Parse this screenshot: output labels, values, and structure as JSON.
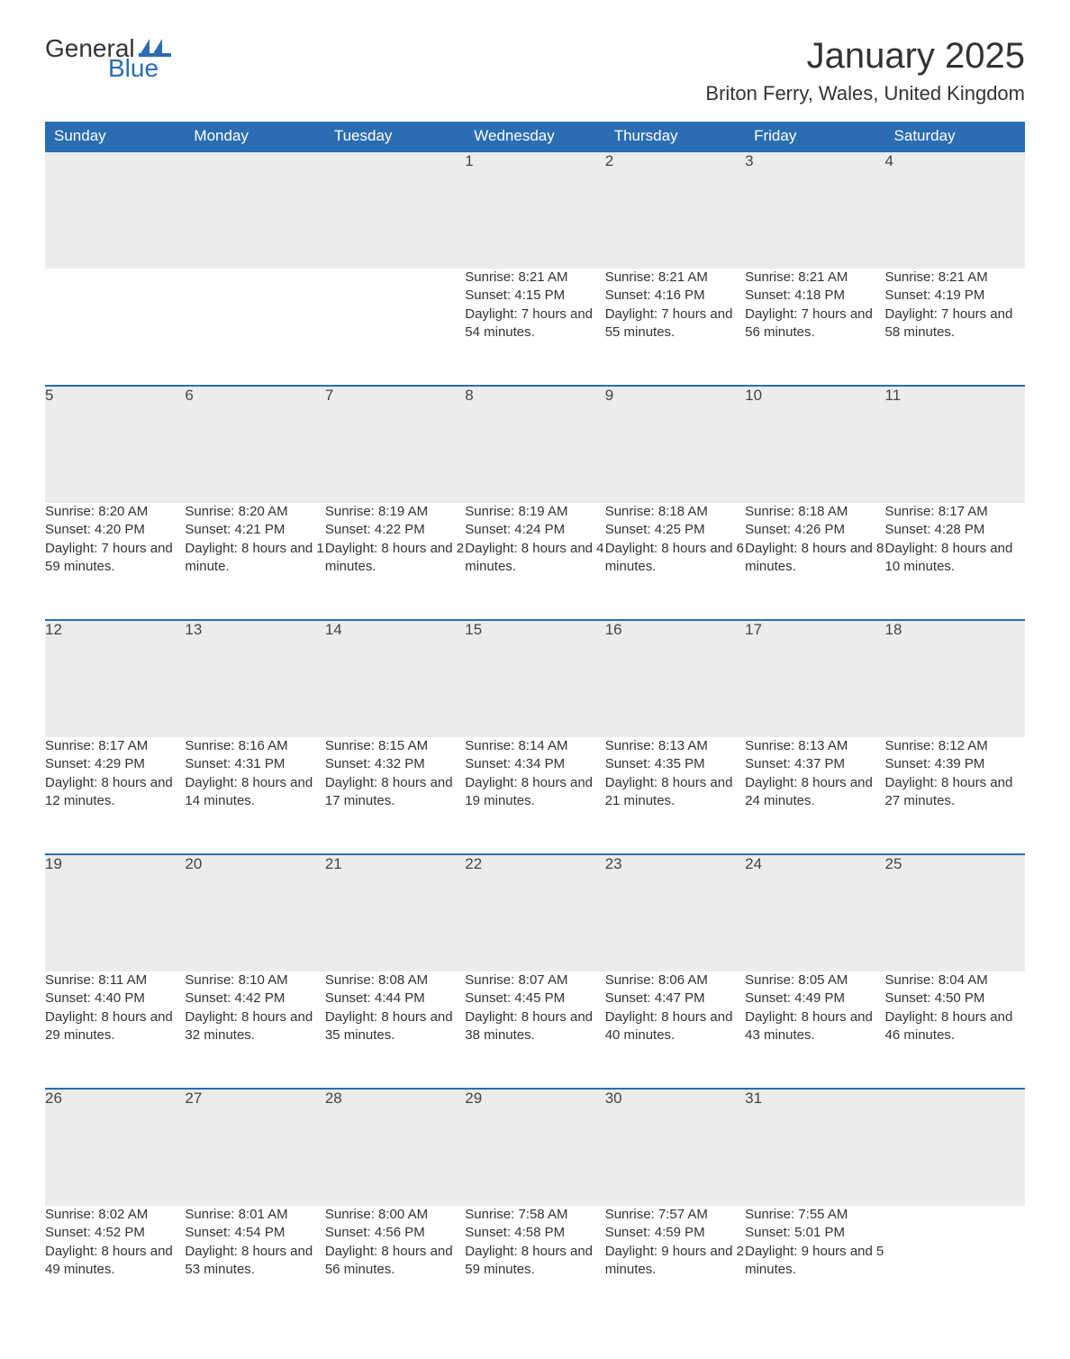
{
  "logo": {
    "part1": "General",
    "part2": "Blue",
    "text_color": "#333333",
    "blue_color": "#2a6db3"
  },
  "header": {
    "title": "January 2025",
    "location": "Briton Ferry, Wales, United Kingdom"
  },
  "colors": {
    "header_bg": "#2a6db3",
    "header_text": "#ffffff",
    "daynum_bg": "#ececec",
    "row_border": "#2a6db3",
    "body_text": "#333333",
    "page_bg": "#ffffff"
  },
  "fonts": {
    "title_size_pt": 30,
    "location_size_pt": 17,
    "th_size_pt": 13,
    "cell_size_pt": 11
  },
  "calendar": {
    "type": "table",
    "columns": [
      "Sunday",
      "Monday",
      "Tuesday",
      "Wednesday",
      "Thursday",
      "Friday",
      "Saturday"
    ],
    "weeks": [
      [
        null,
        null,
        null,
        {
          "num": "1",
          "sunrise": "8:21 AM",
          "sunset": "4:15 PM",
          "daylight": "7 hours and 54 minutes."
        },
        {
          "num": "2",
          "sunrise": "8:21 AM",
          "sunset": "4:16 PM",
          "daylight": "7 hours and 55 minutes."
        },
        {
          "num": "3",
          "sunrise": "8:21 AM",
          "sunset": "4:18 PM",
          "daylight": "7 hours and 56 minutes."
        },
        {
          "num": "4",
          "sunrise": "8:21 AM",
          "sunset": "4:19 PM",
          "daylight": "7 hours and 58 minutes."
        }
      ],
      [
        {
          "num": "5",
          "sunrise": "8:20 AM",
          "sunset": "4:20 PM",
          "daylight": "7 hours and 59 minutes."
        },
        {
          "num": "6",
          "sunrise": "8:20 AM",
          "sunset": "4:21 PM",
          "daylight": "8 hours and 1 minute."
        },
        {
          "num": "7",
          "sunrise": "8:19 AM",
          "sunset": "4:22 PM",
          "daylight": "8 hours and 2 minutes."
        },
        {
          "num": "8",
          "sunrise": "8:19 AM",
          "sunset": "4:24 PM",
          "daylight": "8 hours and 4 minutes."
        },
        {
          "num": "9",
          "sunrise": "8:18 AM",
          "sunset": "4:25 PM",
          "daylight": "8 hours and 6 minutes."
        },
        {
          "num": "10",
          "sunrise": "8:18 AM",
          "sunset": "4:26 PM",
          "daylight": "8 hours and 8 minutes."
        },
        {
          "num": "11",
          "sunrise": "8:17 AM",
          "sunset": "4:28 PM",
          "daylight": "8 hours and 10 minutes."
        }
      ],
      [
        {
          "num": "12",
          "sunrise": "8:17 AM",
          "sunset": "4:29 PM",
          "daylight": "8 hours and 12 minutes."
        },
        {
          "num": "13",
          "sunrise": "8:16 AM",
          "sunset": "4:31 PM",
          "daylight": "8 hours and 14 minutes."
        },
        {
          "num": "14",
          "sunrise": "8:15 AM",
          "sunset": "4:32 PM",
          "daylight": "8 hours and 17 minutes."
        },
        {
          "num": "15",
          "sunrise": "8:14 AM",
          "sunset": "4:34 PM",
          "daylight": "8 hours and 19 minutes."
        },
        {
          "num": "16",
          "sunrise": "8:13 AM",
          "sunset": "4:35 PM",
          "daylight": "8 hours and 21 minutes."
        },
        {
          "num": "17",
          "sunrise": "8:13 AM",
          "sunset": "4:37 PM",
          "daylight": "8 hours and 24 minutes."
        },
        {
          "num": "18",
          "sunrise": "8:12 AM",
          "sunset": "4:39 PM",
          "daylight": "8 hours and 27 minutes."
        }
      ],
      [
        {
          "num": "19",
          "sunrise": "8:11 AM",
          "sunset": "4:40 PM",
          "daylight": "8 hours and 29 minutes."
        },
        {
          "num": "20",
          "sunrise": "8:10 AM",
          "sunset": "4:42 PM",
          "daylight": "8 hours and 32 minutes."
        },
        {
          "num": "21",
          "sunrise": "8:08 AM",
          "sunset": "4:44 PM",
          "daylight": "8 hours and 35 minutes."
        },
        {
          "num": "22",
          "sunrise": "8:07 AM",
          "sunset": "4:45 PM",
          "daylight": "8 hours and 38 minutes."
        },
        {
          "num": "23",
          "sunrise": "8:06 AM",
          "sunset": "4:47 PM",
          "daylight": "8 hours and 40 minutes."
        },
        {
          "num": "24",
          "sunrise": "8:05 AM",
          "sunset": "4:49 PM",
          "daylight": "8 hours and 43 minutes."
        },
        {
          "num": "25",
          "sunrise": "8:04 AM",
          "sunset": "4:50 PM",
          "daylight": "8 hours and 46 minutes."
        }
      ],
      [
        {
          "num": "26",
          "sunrise": "8:02 AM",
          "sunset": "4:52 PM",
          "daylight": "8 hours and 49 minutes."
        },
        {
          "num": "27",
          "sunrise": "8:01 AM",
          "sunset": "4:54 PM",
          "daylight": "8 hours and 53 minutes."
        },
        {
          "num": "28",
          "sunrise": "8:00 AM",
          "sunset": "4:56 PM",
          "daylight": "8 hours and 56 minutes."
        },
        {
          "num": "29",
          "sunrise": "7:58 AM",
          "sunset": "4:58 PM",
          "daylight": "8 hours and 59 minutes."
        },
        {
          "num": "30",
          "sunrise": "7:57 AM",
          "sunset": "4:59 PM",
          "daylight": "9 hours and 2 minutes."
        },
        {
          "num": "31",
          "sunrise": "7:55 AM",
          "sunset": "5:01 PM",
          "daylight": "9 hours and 5 minutes."
        },
        null
      ]
    ],
    "labels": {
      "sunrise": "Sunrise: ",
      "sunset": "Sunset: ",
      "daylight": "Daylight: "
    }
  }
}
